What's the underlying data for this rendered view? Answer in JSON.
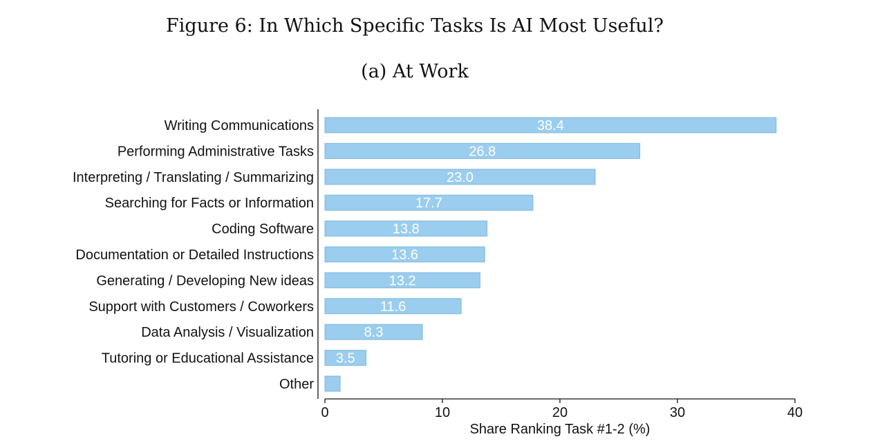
{
  "figure": {
    "title": "Figure 6: In Which Specific Tasks Is AI Most Useful?",
    "subtitle": "(a) At Work"
  },
  "chart_data": {
    "type": "bar",
    "orientation": "horizontal",
    "categories": [
      "Writing Communications",
      "Performing Administrative Tasks",
      "Interpreting / Translating / Summarizing",
      "Searching for Facts or Information",
      "Coding Software",
      "Documentation or Detailed Instructions",
      "Generating / Developing New ideas",
      "Support with Customers / Coworkers",
      "Data Analysis / Visualization",
      "Tutoring or Educational Assistance",
      "Other"
    ],
    "values": [
      38.4,
      26.8,
      23.0,
      17.7,
      13.8,
      13.6,
      13.2,
      11.6,
      8.3,
      3.5,
      1.3
    ],
    "data_labels": [
      "38.4",
      "26.8",
      "23.0",
      "17.7",
      "13.8",
      "13.6",
      "13.2",
      "11.6",
      "8.3",
      "3.5",
      ""
    ],
    "xlabel": "Share Ranking Task #1-2 (%)",
    "ylabel": "",
    "xlim": [
      0,
      40
    ],
    "xticks": [
      0,
      10,
      20,
      30,
      40
    ],
    "bar_color": "#9acdee",
    "bar_edge_color": "#7fb8de",
    "grid": false
  }
}
